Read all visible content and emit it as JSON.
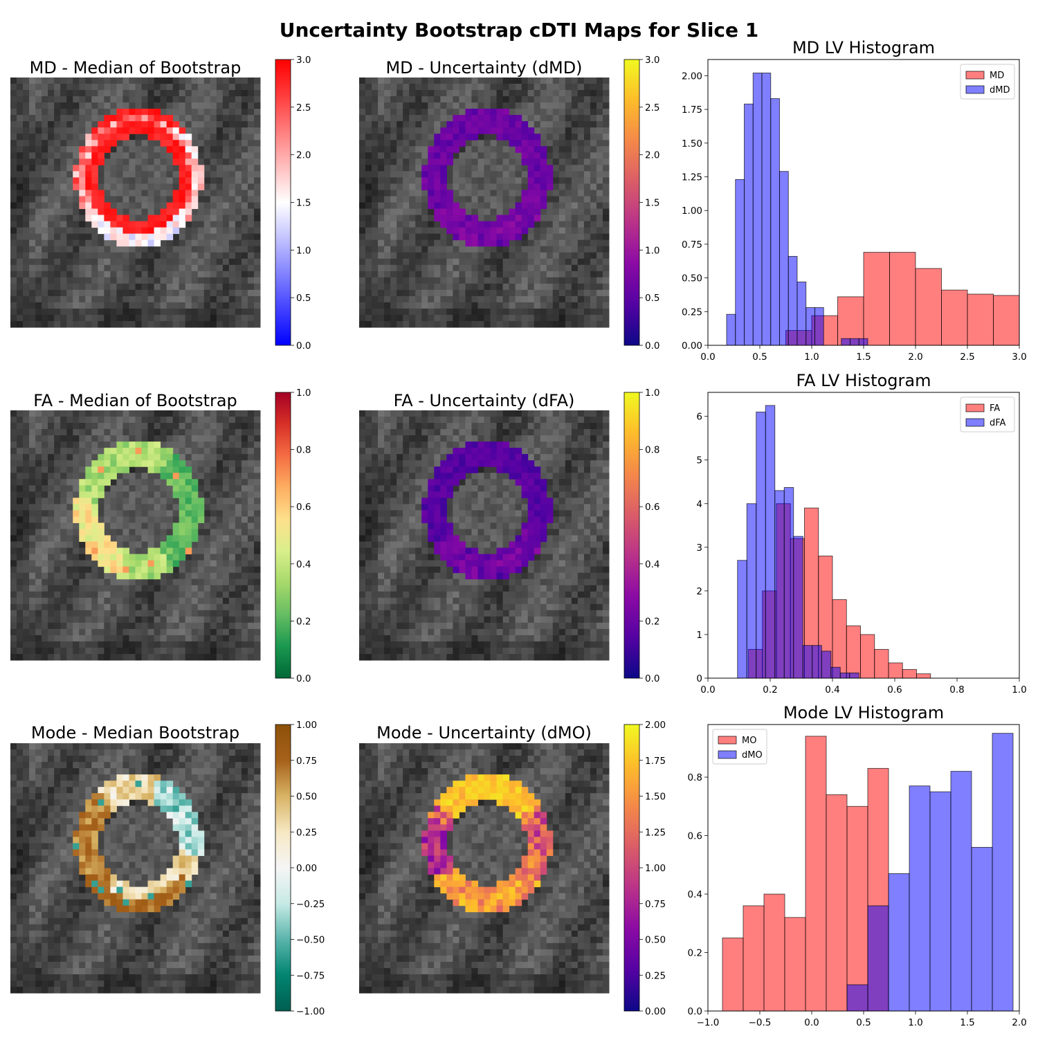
{
  "figure": {
    "title": "Uncertainty Bootstrap cDTI Maps for Slice 1"
  },
  "maps": [
    {
      "title": "MD - Median of Bootstrap",
      "colormap": "bwr",
      "colorbar": {
        "range": [
          0,
          3
        ],
        "ticks": [
          "0.0",
          "0.5",
          "1.0",
          "1.5",
          "2.0",
          "2.5",
          "3.0"
        ]
      },
      "style": "ring_md"
    },
    {
      "title": "MD - Uncertainty (dMD)",
      "colormap": "plasma",
      "colorbar": {
        "range": [
          0,
          3
        ],
        "ticks": [
          "0.0",
          "0.5",
          "1.0",
          "1.5",
          "2.0",
          "2.5",
          "3.0"
        ]
      },
      "style": "ring_dmd"
    },
    {
      "title": "FA - Median of Bootstrap",
      "colormap": "RdYlGn_r",
      "colorbar": {
        "range": [
          0,
          1
        ],
        "ticks": [
          "0.0",
          "0.2",
          "0.4",
          "0.6",
          "0.8",
          "1.0"
        ]
      },
      "style": "ring_fa"
    },
    {
      "title": "FA - Uncertainty (dFA)",
      "colormap": "plasma",
      "colorbar": {
        "range": [
          0,
          1
        ],
        "ticks": [
          "0.0",
          "0.2",
          "0.4",
          "0.6",
          "0.8",
          "1.0"
        ]
      },
      "style": "ring_dfa"
    },
    {
      "title": "Mode - Median Bootstrap",
      "colormap": "BrBG_r",
      "colorbar": {
        "range": [
          -1,
          1
        ],
        "ticks": [
          "−1.00",
          "−0.75",
          "−0.50",
          "−0.25",
          "0.00",
          "0.25",
          "0.50",
          "0.75",
          "1.00"
        ]
      },
      "style": "ring_mo"
    },
    {
      "title": "Mode - Uncertainty (dMO)",
      "colormap": "plasma",
      "colorbar": {
        "range": [
          0,
          2
        ],
        "ticks": [
          "0.00",
          "0.25",
          "0.50",
          "0.75",
          "1.00",
          "1.25",
          "1.50",
          "1.75",
          "2.00"
        ]
      },
      "style": "ring_dmo"
    }
  ],
  "chart_data": [
    {
      "type": "histogram",
      "title": "MD LV Histogram",
      "xlim": [
        0,
        3
      ],
      "ylim": [
        0,
        2.12
      ],
      "xticks": [
        "0.0",
        "0.5",
        "1.0",
        "1.5",
        "2.0",
        "2.5",
        "3.0"
      ],
      "xtick_values": [
        0,
        0.5,
        1.0,
        1.5,
        2.0,
        2.5,
        3.0
      ],
      "yticks": [
        "0.00",
        "0.25",
        "0.50",
        "0.75",
        "1.00",
        "1.25",
        "1.50",
        "1.75",
        "2.00"
      ],
      "ytick_values": [
        0,
        0.25,
        0.5,
        0.75,
        1.0,
        1.25,
        1.5,
        1.75,
        2.0
      ],
      "legend": "top-right",
      "series": [
        {
          "name": "MD",
          "color": "#ff0000",
          "edges": [
            0.75,
            1.0,
            1.25,
            1.5,
            1.75,
            2.0,
            2.25,
            2.5,
            2.75,
            3.0
          ],
          "values": [
            0.11,
            0.22,
            0.36,
            0.69,
            0.69,
            0.57,
            0.41,
            0.38,
            0.37
          ]
        },
        {
          "name": "dMD",
          "color": "#0000ff",
          "edges": [
            0.18,
            0.265,
            0.35,
            0.435,
            0.52,
            0.605,
            0.69,
            0.775,
            0.86,
            0.945,
            1.03,
            1.115,
            1.2,
            1.285,
            1.37,
            1.455,
            1.54
          ],
          "values": [
            0.23,
            1.23,
            1.79,
            2.02,
            2.02,
            1.83,
            1.29,
            0.66,
            0.47,
            0.28,
            0.28,
            0.0,
            0.0,
            0.05,
            0.05,
            0.05
          ]
        }
      ]
    },
    {
      "type": "histogram",
      "title": "FA LV Histogram",
      "xlim": [
        0,
        1
      ],
      "ylim": [
        0,
        6.55
      ],
      "xticks": [
        "0.0",
        "0.2",
        "0.4",
        "0.6",
        "0.8",
        "1.0"
      ],
      "xtick_values": [
        0,
        0.2,
        0.4,
        0.6,
        0.8,
        1.0
      ],
      "yticks": [
        "0",
        "1",
        "2",
        "3",
        "4",
        "5",
        "6"
      ],
      "ytick_values": [
        0,
        1,
        2,
        3,
        4,
        5,
        6
      ],
      "legend": "top-right",
      "series": [
        {
          "name": "FA",
          "color": "#ff0000",
          "edges": [
            0.13,
            0.175,
            0.22,
            0.265,
            0.31,
            0.355,
            0.4,
            0.445,
            0.49,
            0.535,
            0.58,
            0.625,
            0.67,
            0.715,
            0.76
          ],
          "values": [
            0.66,
            2.0,
            4.0,
            3.2,
            3.9,
            2.8,
            1.8,
            1.2,
            1.0,
            0.66,
            0.35,
            0.2,
            0.1,
            0.0
          ]
        },
        {
          "name": "dFA",
          "color": "#0000ff",
          "edges": [
            0.095,
            0.125,
            0.155,
            0.185,
            0.215,
            0.245,
            0.275,
            0.305,
            0.335,
            0.365,
            0.395,
            0.425,
            0.455,
            0.485
          ],
          "values": [
            2.7,
            4.0,
            6.1,
            6.25,
            4.3,
            4.37,
            3.25,
            0.75,
            0.75,
            0.62,
            0.25,
            0.12,
            0.12
          ]
        }
      ]
    },
    {
      "type": "histogram",
      "title": "Mode LV Histogram",
      "xlim": [
        -1,
        2
      ],
      "ylim": [
        0,
        0.98
      ],
      "xticks": [
        "−1.0",
        "−0.5",
        "0.0",
        "0.5",
        "1.0",
        "1.5",
        "2.0"
      ],
      "xtick_values": [
        -1.0,
        -0.5,
        0.0,
        0.5,
        1.0,
        1.5,
        2.0
      ],
      "yticks": [
        "0.0",
        "0.2",
        "0.4",
        "0.6",
        "0.8"
      ],
      "ytick_values": [
        0,
        0.2,
        0.4,
        0.6,
        0.8
      ],
      "legend": "top-left",
      "series": [
        {
          "name": "MO",
          "color": "#ff0000",
          "edges": [
            -0.86,
            -0.66,
            -0.46,
            -0.26,
            -0.06,
            0.14,
            0.34,
            0.54,
            0.74
          ],
          "values": [
            0.25,
            0.36,
            0.4,
            0.32,
            0.94,
            0.74,
            0.7,
            0.83
          ]
        },
        {
          "name": "dMO",
          "color": "#0000ff",
          "edges": [
            0.34,
            0.54,
            0.74,
            0.94,
            1.14,
            1.34,
            1.54,
            1.74,
            1.94
          ],
          "values": [
            0.09,
            0.36,
            0.47,
            0.77,
            0.75,
            0.82,
            0.56,
            0.95
          ]
        }
      ]
    }
  ]
}
